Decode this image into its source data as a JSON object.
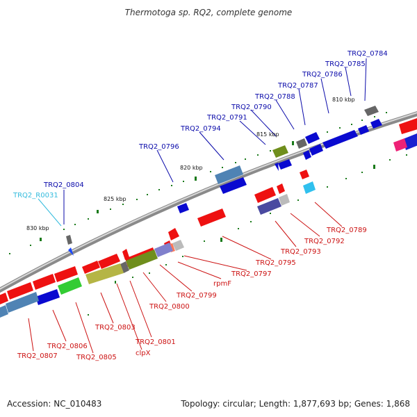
{
  "title": "Thermotoga sp. RQ2, complete genome",
  "footer": {
    "accession": "Accession: NC_010483",
    "summary": "Topology: circular; Length: 1,877,693 bp; Genes: 1,868"
  },
  "colors": {
    "forward_label": "#0a0aaa",
    "reverse_label": "#cc1111",
    "rna_label": "#33bbdd",
    "backbone": "#8a8a8a",
    "tick": "#1a7a1a"
  },
  "scale_labels": [
    "810 kbp",
    "815 kbp",
    "820 kbp",
    "825 kbp",
    "830 kbp"
  ],
  "forward_labels": [
    "TRQ2_0784",
    "TRQ2_0785",
    "TRQ2_0786",
    "TRQ2_0787",
    "TRQ2_0788",
    "TRQ2_0790",
    "TRQ2_0791",
    "TRQ2_0794",
    "TRQ2_0796",
    "TRQ2_0804"
  ],
  "rna_labels": [
    "TRQ2_R0031"
  ],
  "reverse_labels": [
    "TRQ2_0789",
    "TRQ2_0792",
    "TRQ2_0793",
    "TRQ2_0795",
    "TRQ2_0797",
    "rpmF",
    "TRQ2_0799",
    "TRQ2_0800",
    "TRQ2_0801",
    "clpX",
    "TRQ2_0803",
    "TRQ2_0805",
    "TRQ2_0806",
    "TRQ2_0807"
  ]
}
